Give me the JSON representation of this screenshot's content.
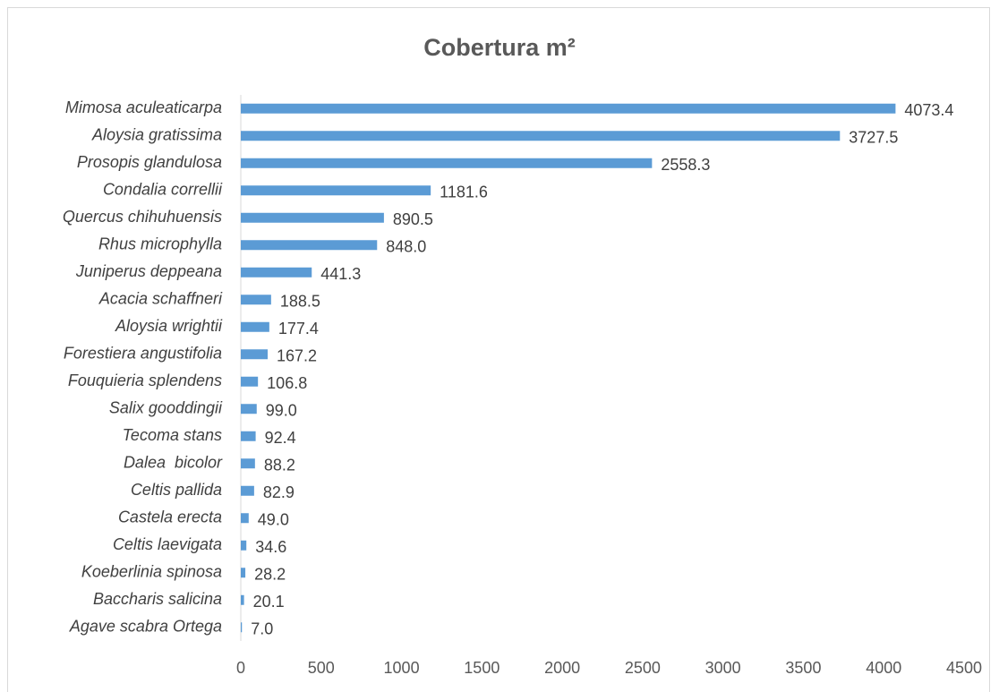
{
  "chart_data": {
    "type": "barh",
    "title": "Cobertura m²",
    "categories": [
      "Mimosa aculeaticarpa",
      "Aloysia gratissima",
      "Prosopis glandulosa",
      "Condalia correllii",
      "Quercus chihuhuensis",
      "Rhus microphylla",
      "Juniperus deppeana",
      "Acacia schaffneri",
      "Aloysia wrightii",
      "Forestiera angustifolia",
      "Fouquieria splendens",
      "Salix gooddingii",
      "Tecoma stans",
      "Dalea  bicolor",
      "Celtis pallida",
      "Castela erecta",
      "Celtis laevigata",
      "Koeberlinia spinosa",
      "Baccharis salicina",
      "Agave scabra Ortega"
    ],
    "values": [
      4073.4,
      3727.5,
      2558.3,
      1181.6,
      890.5,
      848.0,
      441.3,
      188.5,
      177.4,
      167.2,
      106.8,
      99.0,
      92.4,
      88.2,
      82.9,
      49.0,
      34.6,
      28.2,
      20.1,
      7.0
    ],
    "value_labels": [
      "4073.4",
      "3727.5",
      "2558.3",
      "1181.6",
      "890.5",
      "848.0",
      "441.3",
      "188.5",
      "177.4",
      "167.2",
      "106.8",
      "99.0",
      "92.4",
      "88.2",
      "82.9",
      "49.0",
      "34.6",
      "28.2",
      "20.1",
      "7.0"
    ],
    "color": "#5b9bd5",
    "xlim": [
      0,
      4500
    ],
    "xticks": [
      0,
      500,
      1000,
      1500,
      2000,
      2500,
      3000,
      3500,
      4000,
      4500
    ],
    "grid": false
  }
}
